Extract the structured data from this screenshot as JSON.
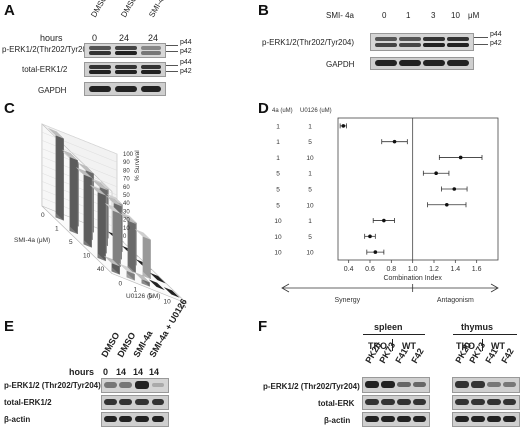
{
  "panels": {
    "A": {
      "letter": "A",
      "hours_label": "hours",
      "lanes": [
        {
          "treatment": "DMSO",
          "hours": "0"
        },
        {
          "treatment": "DMSO",
          "hours": "24"
        },
        {
          "treatment": "SMI-4a",
          "hours": "24"
        }
      ],
      "rows": [
        "p-ERK1/2(Thr202/Tyr204)",
        "total-ERK1/2",
        "GAPDH"
      ],
      "bands": {
        "p44": "p44",
        "p42": "p42",
        "p44b": "p44",
        "p42b": "p42"
      }
    },
    "B": {
      "letter": "B",
      "header": "SMI- 4a",
      "doses": [
        "0",
        "1",
        "3",
        "10"
      ],
      "unit": "μM",
      "rows": [
        "p-ERK1/2(Thr202/Tyr204)",
        "GAPDH"
      ],
      "bands": {
        "p44": "p44",
        "p42": "p42"
      }
    },
    "C": {
      "letter": "C",
      "z_ticks": [
        "0",
        "10",
        "20",
        "30",
        "40",
        "50",
        "60",
        "70",
        "80",
        "90",
        "100"
      ],
      "z_label": "% Survival",
      "y_ticks": [
        "0",
        "1",
        "5",
        "10",
        "40"
      ],
      "y_label": "SMI-4a (μM)",
      "x_ticks": [
        "0",
        "1",
        "5",
        "10",
        "40"
      ],
      "x_label": "U0126 (μM)"
    },
    "D": {
      "letter": "D",
      "col1_header": "4a (uM)",
      "col2_header": "U0126 (uM)",
      "xlabel": "Combination Index",
      "arrow_left": "Synergy",
      "arrow_right": "Antagonism"
    },
    "E": {
      "letter": "E",
      "hours_label": "hours",
      "lanes": [
        {
          "treatment": "DMSO",
          "hours": "0"
        },
        {
          "treatment": "DMSO",
          "hours": "14"
        },
        {
          "treatment": "SMI-4a",
          "hours": "14"
        },
        {
          "treatment": "SMI-4a + U0126",
          "hours": "14"
        }
      ],
      "rows": [
        "p-ERK1/2 (Thr202/Tyr204)",
        "total-ERK1/2",
        "β-actin"
      ]
    },
    "F": {
      "letter": "F",
      "groups": [
        "spleen",
        "thymus"
      ],
      "genotypes": [
        "TKO",
        "WT",
        "TKO",
        "WT"
      ],
      "lanes": [
        "PK20",
        "PK73",
        "F41",
        "F42",
        "PK20",
        "PK73",
        "F41",
        "F42"
      ],
      "rows": [
        "p-ERK1/2 (Thr202/Tyr204)",
        "total-ERK",
        "β-actin"
      ]
    }
  },
  "chart_data": [
    {
      "type": "bar",
      "panel": "C",
      "z_label": "% Survival",
      "zlim": [
        0,
        100
      ],
      "x_label": "U0126 (μM)",
      "y_label": "SMI-4a (μM)",
      "x_categories": [
        "0",
        "1",
        "5",
        "10",
        "40"
      ],
      "y_categories": [
        "0",
        "1",
        "5",
        "10",
        "40"
      ],
      "series": [
        {
          "name": "0",
          "values": [
            100,
            78,
            72,
            60,
            3
          ]
        },
        {
          "name": "1",
          "values": [
            90,
            75,
            68,
            58,
            2
          ]
        },
        {
          "name": "5",
          "values": [
            85,
            70,
            65,
            52,
            2
          ]
        },
        {
          "name": "10",
          "values": [
            80,
            65,
            60,
            48,
            2
          ]
        },
        {
          "name": "40",
          "values": [
            10,
            8,
            5,
            3,
            1
          ]
        }
      ]
    },
    {
      "type": "scatter",
      "panel": "D",
      "xlabel": "Combination Index",
      "xlim": [
        0.3,
        1.8
      ],
      "x_ticks": [
        "0.4",
        "0.6",
        "0.8",
        "1.0",
        "1.2",
        "1.4",
        "1.6"
      ],
      "reference_line": 1.0,
      "rows": [
        {
          "a": "1",
          "u": "1",
          "ci": 0.35,
          "err": 0.03
        },
        {
          "a": "1",
          "u": "5",
          "ci": 0.83,
          "err": 0.12
        },
        {
          "a": "1",
          "u": "10",
          "ci": 1.45,
          "err": 0.2
        },
        {
          "a": "5",
          "u": "1",
          "ci": 1.22,
          "err": 0.12
        },
        {
          "a": "5",
          "u": "5",
          "ci": 1.39,
          "err": 0.12
        },
        {
          "a": "5",
          "u": "10",
          "ci": 1.32,
          "err": 0.18
        },
        {
          "a": "10",
          "u": "1",
          "ci": 0.73,
          "err": 0.1
        },
        {
          "a": "10",
          "u": "5",
          "ci": 0.6,
          "err": 0.05
        },
        {
          "a": "10",
          "u": "10",
          "ci": 0.65,
          "err": 0.08
        }
      ]
    }
  ]
}
